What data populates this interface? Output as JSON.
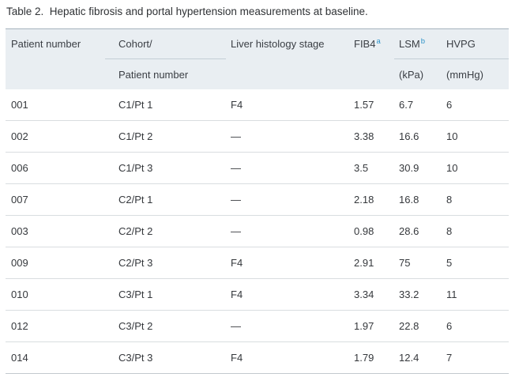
{
  "page": {
    "caption": "Table 2.  Hepatic fibrosis and portal hypertension measurements at baseline."
  },
  "colors": {
    "header_background": "#e9eef2",
    "header_top_border": "#a6b3bd",
    "header_inner_border": "#c4ced6",
    "row_divider": "#d9dde0",
    "table_bottom_border": "#c3c9ce",
    "body_text": "#35383c",
    "footnote_marker_blue": "#2e93c9"
  },
  "table": {
    "header": {
      "col1": "Patient number",
      "col2_line1": "Cohort/",
      "col2_line2": "Patient number",
      "col3": "Liver histology stage",
      "col4": "FIB4",
      "col4_footnote": "a",
      "col5": "LSM",
      "col5_footnote": "b",
      "col5_line2": "(kPa)",
      "col6": "HVPG",
      "col6_line2": "(mmHg)"
    },
    "rows": [
      [
        "001",
        "C1/Pt 1",
        "F4",
        "1.57",
        "6.7",
        "6"
      ],
      [
        "002",
        "C1/Pt 2",
        "—",
        "3.38",
        "16.6",
        "10"
      ],
      [
        "006",
        "C1/Pt 3",
        "—",
        "3.5",
        "30.9",
        "10"
      ],
      [
        "007",
        "C2/Pt 1",
        "—",
        "2.18",
        "16.8",
        "8"
      ],
      [
        "003",
        "C2/Pt 2",
        "—",
        "0.98",
        "28.6",
        "8"
      ],
      [
        "009",
        "C2/Pt 3",
        "F4",
        "2.91",
        "75",
        "5"
      ],
      [
        "010",
        "C3/Pt 1",
        "F4",
        "3.34",
        "33.2",
        "11"
      ],
      [
        "012",
        "C3/Pt 2",
        "—",
        "1.97",
        "22.8",
        "6"
      ],
      [
        "014",
        "C3/Pt 3",
        "F4",
        "1.79",
        "12.4",
        "7"
      ]
    ]
  }
}
